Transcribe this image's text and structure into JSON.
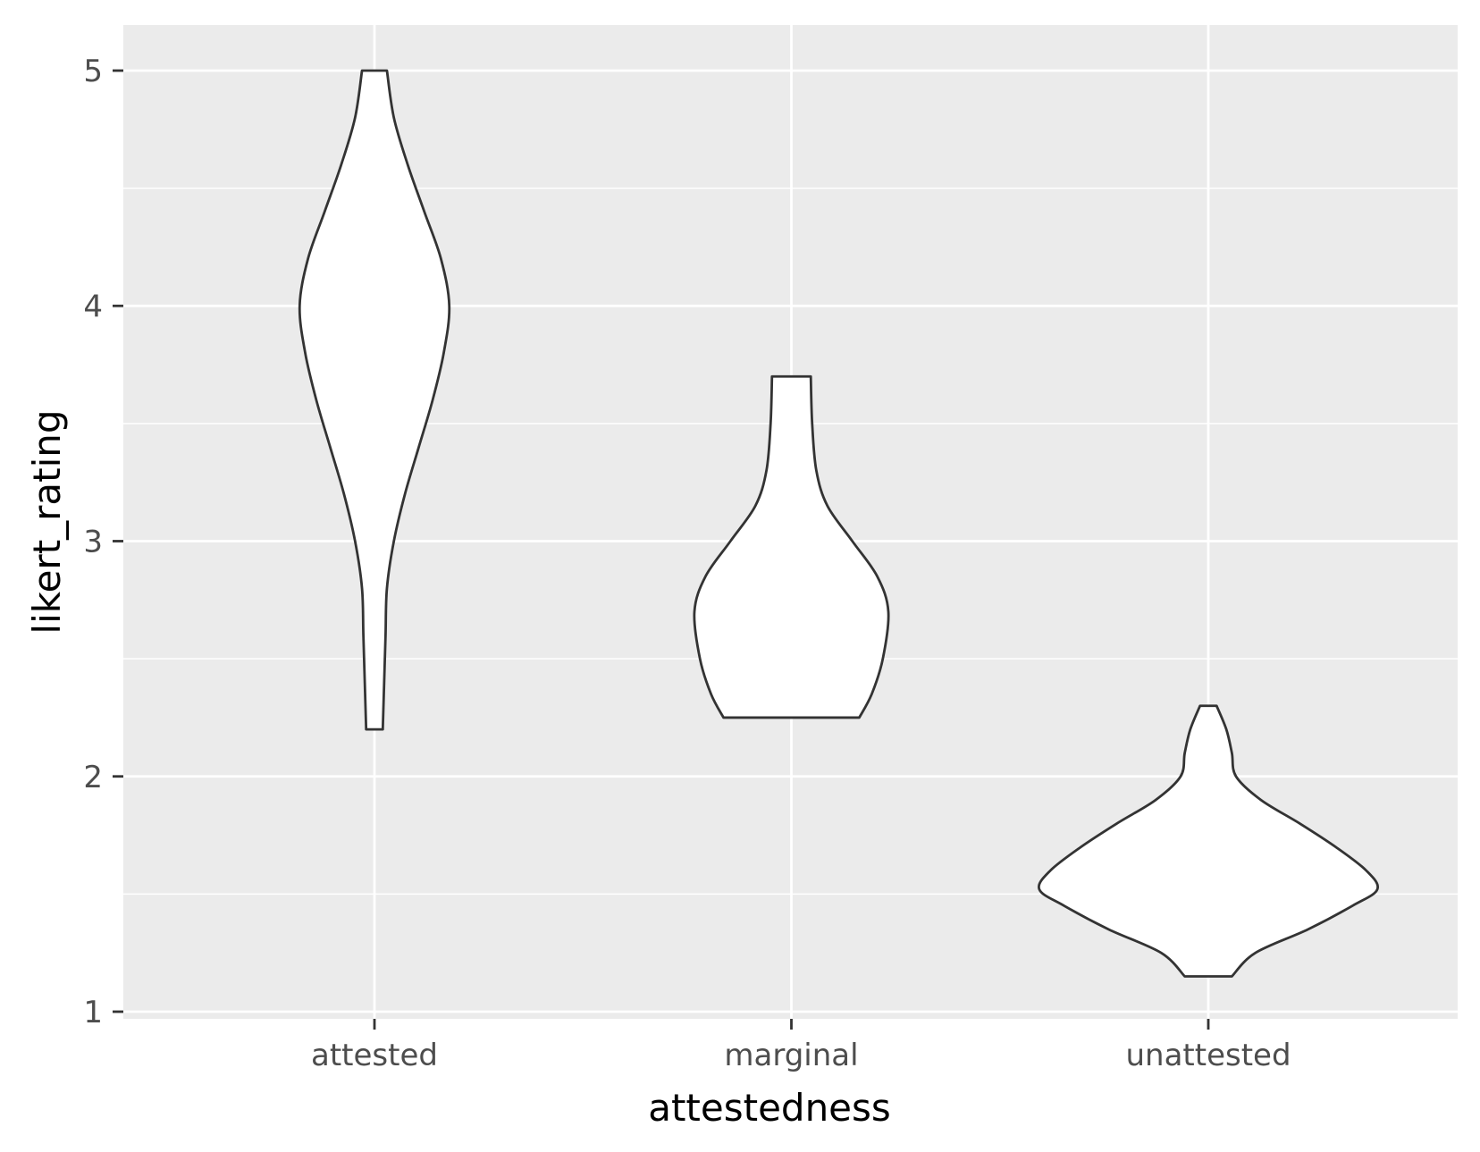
{
  "chart_data": {
    "type": "violin",
    "xlabel": "attestedness",
    "ylabel": "likert_rating",
    "categories": [
      "attested",
      "marginal",
      "unattested"
    ],
    "ylim": [
      0.95,
      5.2
    ],
    "y_ticks": [
      1,
      2,
      3,
      4,
      5
    ],
    "y_tick_labels": [
      "1",
      "2",
      "3",
      "4",
      "5"
    ],
    "grid": true,
    "colors": {
      "panel_background": "#ebebeb",
      "gridline": "#ffffff",
      "violin_fill": "#ffffff",
      "violin_stroke": "#333333",
      "tick_text": "#4d4d4d"
    },
    "violins": [
      {
        "category": "attested",
        "min": 2.2,
        "max": 5.0,
        "density_profile": [
          [
            2.2,
            0.03
          ],
          [
            2.4,
            0.035
          ],
          [
            2.6,
            0.04
          ],
          [
            2.8,
            0.045
          ],
          [
            3.0,
            0.07
          ],
          [
            3.2,
            0.11
          ],
          [
            3.4,
            0.16
          ],
          [
            3.6,
            0.21
          ],
          [
            3.8,
            0.25
          ],
          [
            4.0,
            0.27
          ],
          [
            4.2,
            0.24
          ],
          [
            4.4,
            0.18
          ],
          [
            4.6,
            0.12
          ],
          [
            4.8,
            0.07
          ],
          [
            5.0,
            0.045
          ]
        ]
      },
      {
        "category": "marginal",
        "min": 2.25,
        "max": 3.7,
        "density_profile": [
          [
            2.25,
            0.245
          ],
          [
            2.35,
            0.29
          ],
          [
            2.5,
            0.33
          ],
          [
            2.7,
            0.35
          ],
          [
            2.85,
            0.31
          ],
          [
            3.0,
            0.22
          ],
          [
            3.15,
            0.13
          ],
          [
            3.3,
            0.09
          ],
          [
            3.5,
            0.075
          ],
          [
            3.7,
            0.07
          ]
        ]
      },
      {
        "category": "unattested",
        "min": 1.15,
        "max": 2.3,
        "density_profile": [
          [
            1.15,
            0.085
          ],
          [
            1.25,
            0.17
          ],
          [
            1.35,
            0.36
          ],
          [
            1.45,
            0.52
          ],
          [
            1.52,
            0.61
          ],
          [
            1.6,
            0.57
          ],
          [
            1.7,
            0.46
          ],
          [
            1.8,
            0.33
          ],
          [
            1.9,
            0.19
          ],
          [
            2.0,
            0.1
          ],
          [
            2.1,
            0.085
          ],
          [
            2.2,
            0.065
          ],
          [
            2.3,
            0.03
          ]
        ]
      }
    ]
  }
}
